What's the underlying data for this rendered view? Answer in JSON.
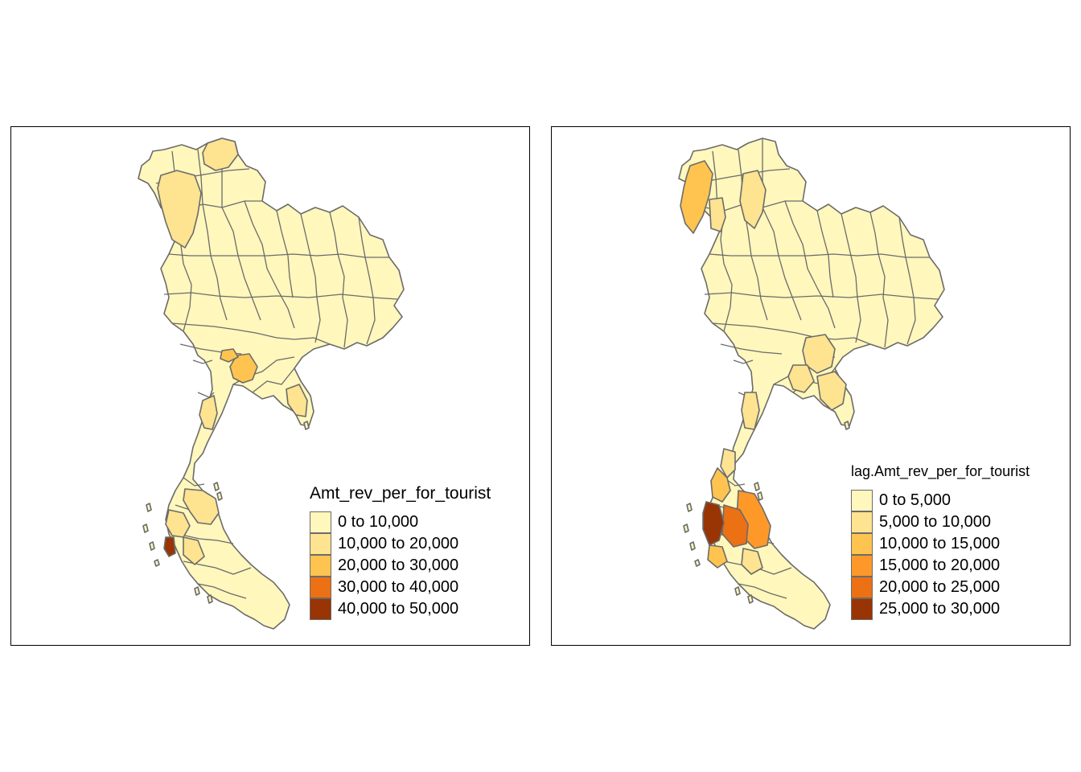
{
  "colors": {
    "border": "#6b6b6b",
    "left_classes": [
      "#FFF7BC",
      "#FEE391",
      "#FEC44F",
      "#EC7014",
      "#993404"
    ],
    "right_classes": [
      "#FFF7BC",
      "#FEE391",
      "#FEC44F",
      "#FE9929",
      "#EC7014",
      "#993404"
    ]
  },
  "maps": [
    {
      "variable": "Amt_rev_per_for_tourist",
      "legend": {
        "title": "Amt_rev_per_for_tourist",
        "items": [
          {
            "label": "0 to 10,000",
            "color": "#FFF7BC"
          },
          {
            "label": "10,000 to 20,000",
            "color": "#FEE391"
          },
          {
            "label": "20,000 to 30,000",
            "color": "#FEC44F"
          },
          {
            "label": "30,000 to 40,000",
            "color": "#EC7014"
          },
          {
            "label": "40,000 to 50,000",
            "color": "#993404"
          }
        ]
      }
    },
    {
      "variable": "lag.Amt_rev_per_for_tourist",
      "legend": {
        "title": "lag.Amt_rev_per_for_tourist",
        "items": [
          {
            "label": "0 to 5,000",
            "color": "#FFF7BC"
          },
          {
            "label": "5,000 to 10,000",
            "color": "#FEE391"
          },
          {
            "label": "10,000 to 15,000",
            "color": "#FEC44F"
          },
          {
            "label": "15,000 to 20,000",
            "color": "#FE9929"
          },
          {
            "label": "20,000 to 25,000",
            "color": "#EC7014"
          },
          {
            "label": "25,000 to 30,000",
            "color": "#993404"
          }
        ]
      }
    }
  ]
}
